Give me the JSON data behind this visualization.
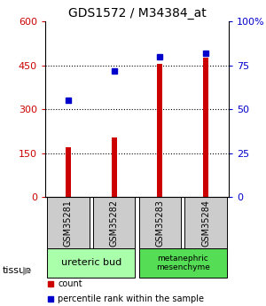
{
  "title": "GDS1572 / M34384_at",
  "samples": [
    "GSM35281",
    "GSM35282",
    "GSM35283",
    "GSM35284"
  ],
  "counts": [
    170,
    205,
    455,
    475
  ],
  "percentile_ranks": [
    55,
    72,
    80,
    82
  ],
  "left_ylim": [
    0,
    600
  ],
  "right_ylim": [
    0,
    100
  ],
  "left_yticks": [
    0,
    150,
    300,
    450,
    600
  ],
  "right_yticks": [
    0,
    25,
    50,
    75,
    100
  ],
  "right_yticklabels": [
    "0",
    "25",
    "50",
    "75",
    "100%"
  ],
  "hlines": [
    150,
    300,
    450
  ],
  "bar_color": "#cc0000",
  "dot_color": "#0000cc",
  "left_tick_color": "#cc0000",
  "right_tick_color": "#0000cc",
  "tissues": [
    {
      "label": "ureteric bud",
      "samples": [
        0,
        1
      ],
      "color": "#aaffaa"
    },
    {
      "label": "metanephric\nmesenchyme",
      "samples": [
        2,
        3
      ],
      "color": "#55dd55"
    }
  ],
  "tissue_label": "tissue",
  "legend_count_label": "count",
  "legend_pct_label": "percentile rank within the sample",
  "background_color": "#ffffff",
  "plot_bg_color": "#ffffff",
  "label_area_bg": "#cccccc",
  "tissue_arrow_color": "#999999"
}
